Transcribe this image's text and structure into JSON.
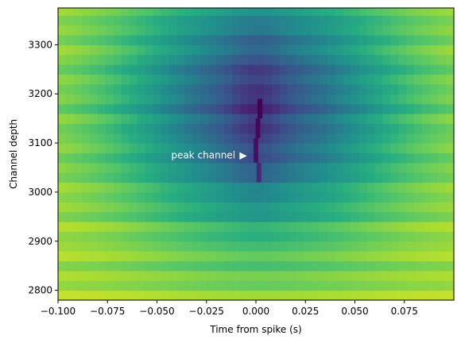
{
  "chart_data": {
    "type": "heatmap",
    "title": "",
    "xlabel": "Time from spike (s)",
    "ylabel": "Channel depth",
    "xlim": [
      -0.1,
      0.1
    ],
    "ylim": [
      2780,
      3375
    ],
    "x_ticks": [
      -0.1,
      -0.075,
      -0.05,
      -0.025,
      0.0,
      0.025,
      0.05,
      0.075
    ],
    "x_tick_labels": [
      "−0.100",
      "−0.075",
      "−0.050",
      "−0.025",
      "0.000",
      "0.025",
      "0.050",
      "0.075"
    ],
    "y_ticks": [
      2800,
      2900,
      3000,
      3100,
      3200,
      3300
    ],
    "y_tick_labels": [
      "2800",
      "2900",
      "3000",
      "3100",
      "3200",
      "3300"
    ],
    "colormap": "viridis",
    "channel_rows": {
      "depth_start": 2780,
      "depth_step": 20,
      "count": 30
    },
    "annotation": {
      "text": "peak channel",
      "marker": "▶",
      "x": -0.004,
      "y": 3075
    },
    "grid": false,
    "legend": "none"
  }
}
